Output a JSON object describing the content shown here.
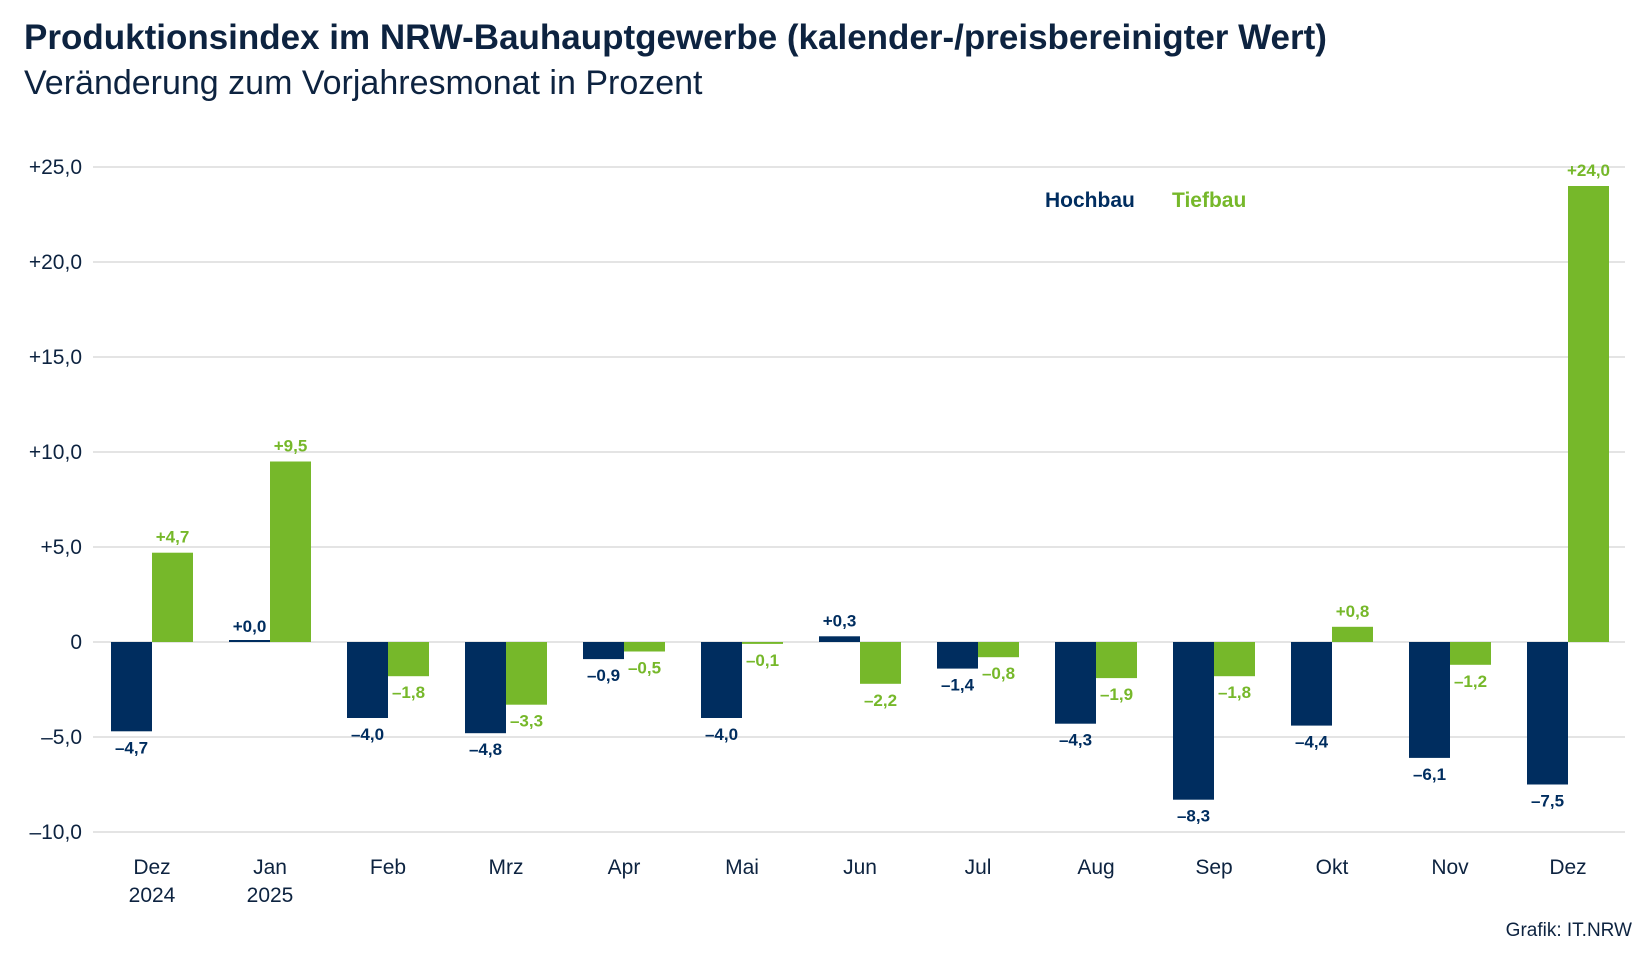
{
  "title": "Produktionsindex im NRW-Bauhauptgewerbe (kalender-/preisbereinigter Wert)",
  "subtitle": "Veränderung zum Vorjahresmonat in Prozent",
  "source": "Grafik: IT.NRW",
  "chart_data": {
    "type": "bar",
    "title": "Produktionsindex im NRW-Bauhauptgewerbe (kalender-/preisbereinigter Wert)",
    "subtitle": "Veränderung zum Vorjahresmonat in Prozent",
    "categories": [
      [
        "Dez",
        "2024"
      ],
      [
        "Jan",
        "2025"
      ],
      [
        "Feb"
      ],
      [
        "Mrz"
      ],
      [
        "Apr"
      ],
      [
        "Mai"
      ],
      [
        "Jun"
      ],
      [
        "Jul"
      ],
      [
        "Aug"
      ],
      [
        "Sep"
      ],
      [
        "Okt"
      ],
      [
        "Nov"
      ],
      [
        "Dez"
      ]
    ],
    "series": [
      {
        "name": "Hochbau",
        "color": "#002d5f",
        "values": [
          -4.7,
          0.0,
          -4.0,
          -4.8,
          -0.9,
          -4.0,
          0.3,
          -1.4,
          -4.3,
          -8.3,
          -4.4,
          -6.1,
          -7.5
        ],
        "labels": [
          "–4,7",
          "+0,0",
          "–4,0",
          "–4,8",
          "–0,9",
          "–4,0",
          "+0,3",
          "–1,4",
          "–4,3",
          "–8,3",
          "–4,4",
          "–6,1",
          "–7,5"
        ]
      },
      {
        "name": "Tiefbau",
        "color": "#76b82a",
        "values": [
          4.7,
          9.5,
          -1.8,
          -3.3,
          -0.5,
          -0.1,
          -2.2,
          -0.8,
          -1.9,
          -1.8,
          0.8,
          -1.2,
          24.0
        ],
        "labels": [
          "+4,7",
          "+9,5",
          "–1,8",
          "–3,3",
          "–0,5",
          "–0,1",
          "–2,2",
          "–0,8",
          "–1,9",
          "–1,8",
          "+0,8",
          "–1,2",
          "+24,0"
        ]
      }
    ],
    "yticks": [
      25,
      20,
      15,
      10,
      5,
      0,
      -5,
      -10
    ],
    "ytick_labels": [
      "+25,0",
      "+20,0",
      "+15,0",
      "+10,0",
      "+5,0",
      "0",
      "–5,0",
      "–10,0"
    ],
    "ylim": [
      -10,
      25
    ],
    "grid": true,
    "legend": "top-right"
  }
}
